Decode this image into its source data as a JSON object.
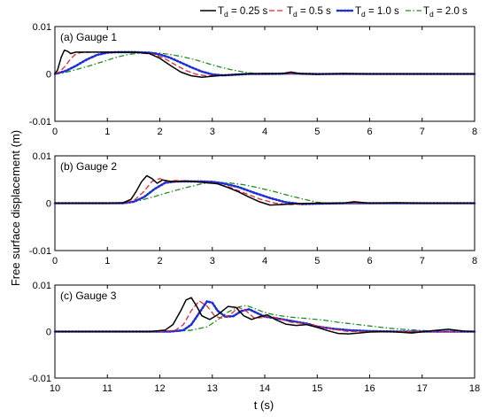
{
  "figure": {
    "ylabel": "Free surface displacement (m)",
    "xlabel_bottom": "t (s)"
  },
  "legend": [
    {
      "prefix": "T",
      "sub": "d",
      "suffix": " = 0.25 s",
      "color": "#000000",
      "dash": "solid"
    },
    {
      "prefix": "T",
      "sub": "d",
      "suffix": " = 0.5 s",
      "color": "#e8262b",
      "dash": "dashed"
    },
    {
      "prefix": "T",
      "sub": "d",
      "suffix": " = 1.0 s",
      "color": "#1c2fd4",
      "dash": "dotted"
    },
    {
      "prefix": "T",
      "sub": "d",
      "suffix": " = 2.0 s",
      "color": "#1e8c1e",
      "dash": "dashdot"
    }
  ],
  "chart_data": [
    {
      "type": "line",
      "title": "(a) Gauge 1",
      "xlim": [
        0,
        8
      ],
      "ylim": [
        -0.01,
        0.01
      ],
      "xticks": [
        "0",
        "1",
        "2",
        "3",
        "4",
        "5",
        "6",
        "7",
        "8"
      ],
      "yticks": [
        "-0.01",
        "0",
        "0.01"
      ],
      "series": [
        {
          "name": "Td = 0.25 s",
          "x": [
            0,
            0.05,
            0.12,
            0.18,
            0.24,
            0.3,
            0.4,
            0.6,
            1.0,
            1.5,
            1.8,
            2.0,
            2.2,
            2.4,
            2.6,
            2.8,
            3.0,
            3.3,
            3.6,
            4.0,
            4.3,
            4.5,
            4.7,
            5.0,
            5.5,
            6,
            7,
            8
          ],
          "y": [
            0,
            0.0008,
            0.0035,
            0.005,
            0.0048,
            0.0043,
            0.0046,
            0.0046,
            0.0046,
            0.0046,
            0.0043,
            0.0033,
            0.0018,
            0.0004,
            -0.0004,
            -0.0007,
            -0.0005,
            -0.0002,
            0,
            0.0001,
            0,
            0.0004,
            0,
            -0.0001,
            0.0001,
            0,
            0,
            0
          ]
        },
        {
          "name": "Td = 0.5 s",
          "x": [
            0,
            0.1,
            0.2,
            0.3,
            0.4,
            0.5,
            0.7,
            1.0,
            1.5,
            1.9,
            2.1,
            2.3,
            2.5,
            2.7,
            2.9,
            3.1,
            3.3,
            3.6,
            4.0,
            4.5,
            5,
            6,
            7,
            8
          ],
          "y": [
            0,
            0.0005,
            0.0017,
            0.0032,
            0.0042,
            0.0045,
            0.0046,
            0.0046,
            0.0046,
            0.0041,
            0.0032,
            0.0019,
            0.0007,
            -0.0001,
            -0.0004,
            -0.0004,
            -0.0002,
            0,
            0,
            0.0001,
            0,
            0,
            0,
            0
          ]
        },
        {
          "name": "Td = 1.0 s",
          "x": [
            0,
            0.2,
            0.4,
            0.6,
            0.8,
            1.0,
            1.2,
            1.5,
            1.8,
            2.0,
            2.2,
            2.4,
            2.6,
            2.8,
            3.0,
            3.2,
            3.4,
            3.7,
            4.0,
            4.5,
            5,
            6,
            7,
            8
          ],
          "y": [
            0,
            0.0006,
            0.0017,
            0.003,
            0.004,
            0.0045,
            0.0046,
            0.0046,
            0.0045,
            0.0041,
            0.0034,
            0.0024,
            0.0014,
            0.0005,
            -0.0001,
            -0.0003,
            -0.0002,
            0,
            0,
            0.0001,
            0,
            0,
            0,
            0
          ]
        },
        {
          "name": "Td = 2.0 s",
          "x": [
            0,
            0.2,
            0.4,
            0.6,
            0.8,
            1.0,
            1.2,
            1.4,
            1.6,
            1.8,
            2.0,
            2.2,
            2.4,
            2.6,
            2.8,
            3.0,
            3.2,
            3.4,
            3.6,
            3.8,
            4.0,
            4.5,
            5,
            6,
            7,
            8
          ],
          "y": [
            0,
            0.0003,
            0.0009,
            0.0015,
            0.0022,
            0.0029,
            0.0036,
            0.0041,
            0.0044,
            0.0045,
            0.0044,
            0.0041,
            0.0037,
            0.0032,
            0.0026,
            0.0019,
            0.0013,
            0.0008,
            0.0004,
            0.0001,
            0,
            0,
            0,
            0,
            0,
            0
          ]
        }
      ]
    },
    {
      "type": "line",
      "title": "(b) Gauge 2",
      "xlim": [
        0,
        8
      ],
      "ylim": [
        -0.01,
        0.01
      ],
      "xticks": [
        "0",
        "1",
        "2",
        "3",
        "4",
        "5",
        "6",
        "7",
        "8"
      ],
      "yticks": [
        "-0.01",
        "0",
        "0.01"
      ],
      "series": [
        {
          "name": "Td = 0.25 s",
          "x": [
            0,
            1.0,
            1.3,
            1.45,
            1.55,
            1.65,
            1.75,
            1.85,
            1.95,
            2.05,
            2.15,
            2.3,
            2.5,
            2.7,
            2.9,
            3.1,
            3.3,
            3.5,
            3.7,
            3.9,
            4.1,
            4.3,
            4.6,
            5.0,
            5.5,
            5.7,
            6.0,
            6.5,
            7,
            8
          ],
          "y": [
            0,
            0,
            0.0001,
            0.0008,
            0.0025,
            0.0045,
            0.0058,
            0.0052,
            0.0042,
            0.0049,
            0.0047,
            0.0045,
            0.0047,
            0.0045,
            0.0043,
            0.0041,
            0.0033,
            0.0024,
            0.0013,
            0.0003,
            -0.0004,
            -0.0003,
            -0.0001,
            0,
            0,
            0.0003,
            0,
            0.0001,
            0,
            0
          ]
        },
        {
          "name": "Td = 0.5 s",
          "x": [
            0,
            1.2,
            1.5,
            1.7,
            1.85,
            2.0,
            2.15,
            2.3,
            2.6,
            3.0,
            3.3,
            3.6,
            3.9,
            4.2,
            4.5,
            5.0,
            5.5,
            6,
            7,
            8
          ],
          "y": [
            0,
            0,
            0.0005,
            0.0025,
            0.0046,
            0.0052,
            0.0045,
            0.0048,
            0.0046,
            0.0043,
            0.0035,
            0.0022,
            0.0009,
            0,
            -0.0003,
            0,
            0,
            0.0001,
            0,
            0
          ]
        },
        {
          "name": "Td = 1.0 s",
          "x": [
            0,
            1.3,
            1.5,
            1.7,
            1.9,
            2.1,
            2.3,
            2.5,
            2.8,
            3.0,
            3.2,
            3.5,
            3.8,
            4.1,
            4.4,
            4.7,
            5.0,
            5.5,
            6,
            7,
            8
          ],
          "y": [
            0,
            0,
            0.0003,
            0.0013,
            0.003,
            0.0043,
            0.0046,
            0.0046,
            0.0046,
            0.0045,
            0.0042,
            0.0034,
            0.0022,
            0.0011,
            0.0002,
            -0.0002,
            -0.0001,
            0,
            0,
            0,
            0
          ]
        },
        {
          "name": "Td = 2.0 s",
          "x": [
            0,
            1.3,
            1.6,
            1.9,
            2.2,
            2.5,
            2.8,
            3.0,
            3.3,
            3.6,
            3.9,
            4.2,
            4.5,
            4.8,
            5.0,
            5.2,
            5.5,
            6,
            7,
            8
          ],
          "y": [
            0,
            0,
            0.0005,
            0.0014,
            0.0024,
            0.0033,
            0.0041,
            0.0044,
            0.0043,
            0.0039,
            0.0032,
            0.0024,
            0.0015,
            0.0007,
            0.0002,
            0,
            0,
            0,
            0,
            0
          ]
        }
      ]
    },
    {
      "type": "line",
      "title": "(c) Gauge 3",
      "xlim": [
        10,
        18
      ],
      "ylim": [
        -0.01,
        0.01
      ],
      "xticks": [
        "10",
        "11",
        "12",
        "13",
        "14",
        "15",
        "16",
        "17",
        "18"
      ],
      "yticks": [
        "-0.01",
        "0",
        "0.01"
      ],
      "series": [
        {
          "name": "Td = 0.25 s",
          "x": [
            10,
            11.8,
            12.1,
            12.25,
            12.4,
            12.5,
            12.6,
            12.7,
            12.8,
            12.95,
            13.1,
            13.3,
            13.45,
            13.6,
            13.75,
            13.9,
            14.05,
            14.2,
            14.4,
            14.6,
            14.8,
            15.0,
            15.2,
            15.4,
            15.6,
            15.8,
            16.0,
            16.4,
            16.8,
            17.2,
            17.5,
            17.8,
            18
          ],
          "y": [
            0,
            0,
            0.0003,
            0.0015,
            0.0045,
            0.0068,
            0.0073,
            0.0055,
            0.0034,
            0.0026,
            0.0036,
            0.0054,
            0.0052,
            0.0034,
            0.0026,
            0.0032,
            0.0036,
            0.0026,
            0.0016,
            0.0013,
            0.0015,
            0.0009,
            0.0002,
            -0.0004,
            -0.0005,
            -0.0003,
            -0.0001,
            0,
            -0.0003,
            0.0002,
            0.0005,
            0.0001,
            0
          ]
        },
        {
          "name": "Td = 0.5 s",
          "x": [
            10,
            12.0,
            12.3,
            12.45,
            12.6,
            12.75,
            12.9,
            13.05,
            13.2,
            13.35,
            13.5,
            13.65,
            13.8,
            13.95,
            14.1,
            14.3,
            14.5,
            14.7,
            15.0,
            15.3,
            15.6,
            16.0,
            16.5,
            17,
            17.5,
            18
          ],
          "y": [
            0,
            0,
            0.0003,
            0.0015,
            0.0045,
            0.0066,
            0.0055,
            0.0033,
            0.0028,
            0.0037,
            0.0052,
            0.0044,
            0.0029,
            0.003,
            0.0033,
            0.0027,
            0.002,
            0.0018,
            0.0012,
            0.0005,
            0,
            0,
            0,
            0,
            0,
            0
          ]
        },
        {
          "name": "Td = 1.0 s",
          "x": [
            10,
            12.2,
            12.45,
            12.6,
            12.75,
            12.9,
            13.0,
            13.1,
            13.25,
            13.4,
            13.55,
            13.7,
            13.85,
            14.0,
            14.2,
            14.4,
            14.6,
            14.8,
            15.0,
            15.3,
            15.6,
            16.0,
            16.5,
            17,
            17.5,
            18
          ],
          "y": [
            0,
            0,
            0.0003,
            0.0015,
            0.004,
            0.0065,
            0.0062,
            0.0045,
            0.0032,
            0.0033,
            0.0044,
            0.0048,
            0.004,
            0.0032,
            0.0029,
            0.0025,
            0.0021,
            0.0017,
            0.0011,
            0.0006,
            0.0003,
            0.0001,
            0,
            0,
            0,
            0
          ]
        },
        {
          "name": "Td = 2.0 s",
          "x": [
            10,
            12.3,
            12.6,
            12.9,
            13.1,
            13.3,
            13.5,
            13.65,
            13.8,
            13.95,
            14.1,
            14.3,
            14.5,
            14.8,
            15.1,
            15.4,
            15.7,
            16.0,
            16.3,
            16.6,
            16.9,
            17.2,
            17.5,
            18
          ],
          "y": [
            0,
            0,
            0.0003,
            0.001,
            0.0025,
            0.0042,
            0.0053,
            0.0056,
            0.005,
            0.0043,
            0.0038,
            0.0034,
            0.0031,
            0.0028,
            0.0025,
            0.002,
            0.0016,
            0.0012,
            0.0008,
            0.0005,
            0.0003,
            0.0001,
            0,
            0
          ]
        }
      ]
    }
  ]
}
